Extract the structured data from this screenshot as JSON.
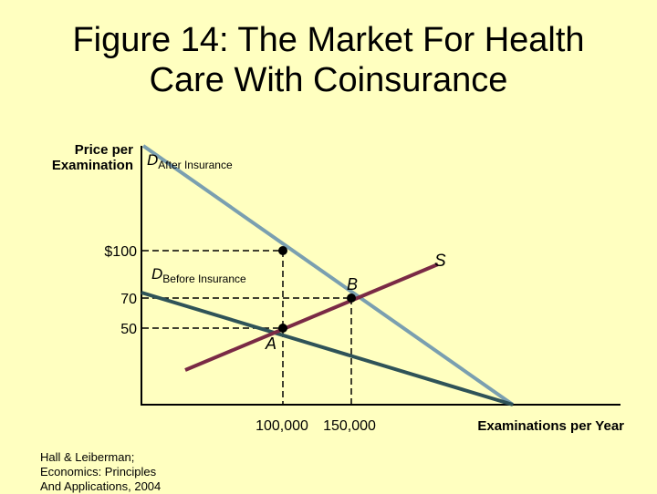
{
  "title": {
    "line1": "Figure 14: The Market For Health",
    "line2": "Care With Coinsurance"
  },
  "y_axis_label": {
    "line1": "Price per",
    "line2": "Examination"
  },
  "x_axis_label": "Examinations per Year",
  "y_ticks": [
    "$100",
    "70",
    "50"
  ],
  "x_ticks": [
    "100,000",
    "150,000"
  ],
  "curves": {
    "demand_after": {
      "main": "D",
      "sub": "After Insurance",
      "color": "#7a9fb0"
    },
    "demand_before": {
      "main": "D",
      "sub": "Before Insurance",
      "color": "#2f5358"
    },
    "supply": {
      "main": "S",
      "color": "#7a2a45"
    }
  },
  "points": {
    "a": "A",
    "b": "B"
  },
  "source": {
    "line1": "Hall & Leiberman;",
    "line2": "Economics:  Principles",
    "line3": "And Applications, 2004"
  }
}
